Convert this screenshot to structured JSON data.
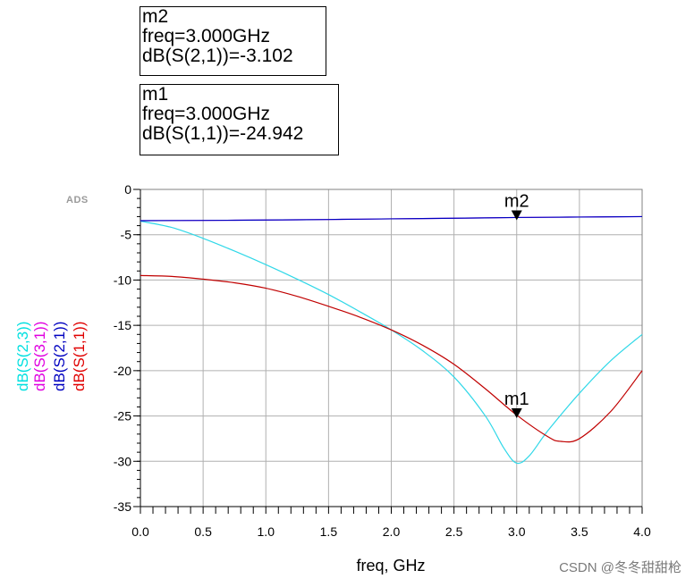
{
  "markers": {
    "m2": {
      "name": "m2",
      "freq_line": "freq=3.000GHz",
      "value_line": "dB(S(2,1))=-3.102",
      "x": 3.0,
      "y": -3.102
    },
    "m1": {
      "name": "m1",
      "freq_line": "freq=3.000GHz",
      "value_line": "dB(S(1,1))=-24.942",
      "x": 3.0,
      "y": -24.942
    }
  },
  "logo": "ADS",
  "watermark": "CSDN @冬冬甜甜枪",
  "chart_data": {
    "type": "line",
    "xlabel": "freq, GHz",
    "xlim": [
      0.0,
      4.0
    ],
    "ylim": [
      -35,
      0
    ],
    "xticks": [
      "0.0",
      "0.5",
      "1.0",
      "1.5",
      "2.0",
      "2.5",
      "3.0",
      "3.5",
      "4.0"
    ],
    "yticks": [
      "0",
      "-5",
      "-10",
      "-15",
      "-20",
      "-25",
      "-30",
      "-35"
    ],
    "grid": true,
    "ylabels": [
      {
        "text": "dB(S(2,3))",
        "color": "#00e0e0"
      },
      {
        "text": "dB(S(3,1))",
        "color": "#e000e0"
      },
      {
        "text": "dB(S(2,1))",
        "color": "#0000c0"
      },
      {
        "text": "dB(S(1,1))",
        "color": "#e00000"
      }
    ],
    "series": [
      {
        "name": "dB(S(2,3))",
        "color": "#30d8e8",
        "x": [
          0.0,
          0.25,
          0.5,
          0.75,
          1.0,
          1.25,
          1.5,
          1.75,
          2.0,
          2.25,
          2.5,
          2.75,
          2.9,
          3.0,
          3.1,
          3.25,
          3.5,
          3.75,
          4.0
        ],
        "y": [
          -3.5,
          -4.2,
          -5.4,
          -6.8,
          -8.3,
          -9.9,
          -11.6,
          -13.5,
          -15.5,
          -17.8,
          -20.7,
          -25.0,
          -28.6,
          -30.2,
          -29.4,
          -26.6,
          -22.5,
          -18.9,
          -16.0
        ]
      },
      {
        "name": "dB(S(3,1))",
        "color": "#d040e8",
        "x": [
          0.0,
          0.5,
          1.0,
          1.5,
          2.0,
          2.5,
          3.0,
          3.5,
          4.0
        ],
        "y": [
          -3.45,
          -3.42,
          -3.38,
          -3.32,
          -3.25,
          -3.18,
          -3.1,
          -3.05,
          -3.0
        ]
      },
      {
        "name": "dB(S(2,1))",
        "color": "#0000c0",
        "x": [
          0.0,
          0.5,
          1.0,
          1.5,
          2.0,
          2.5,
          3.0,
          3.5,
          4.0
        ],
        "y": [
          -3.45,
          -3.42,
          -3.38,
          -3.32,
          -3.25,
          -3.18,
          -3.1,
          -3.05,
          -3.0
        ]
      },
      {
        "name": "dB(S(1,1))",
        "color": "#c00000",
        "x": [
          0.0,
          0.25,
          0.5,
          0.75,
          1.0,
          1.25,
          1.5,
          1.75,
          2.0,
          2.25,
          2.5,
          2.75,
          3.0,
          3.25,
          3.35,
          3.5,
          3.75,
          4.0
        ],
        "y": [
          -9.5,
          -9.6,
          -9.9,
          -10.3,
          -10.9,
          -11.8,
          -12.9,
          -14.1,
          -15.5,
          -17.2,
          -19.3,
          -22.0,
          -24.9,
          -27.3,
          -27.8,
          -27.5,
          -24.5,
          -20.0
        ]
      }
    ]
  }
}
